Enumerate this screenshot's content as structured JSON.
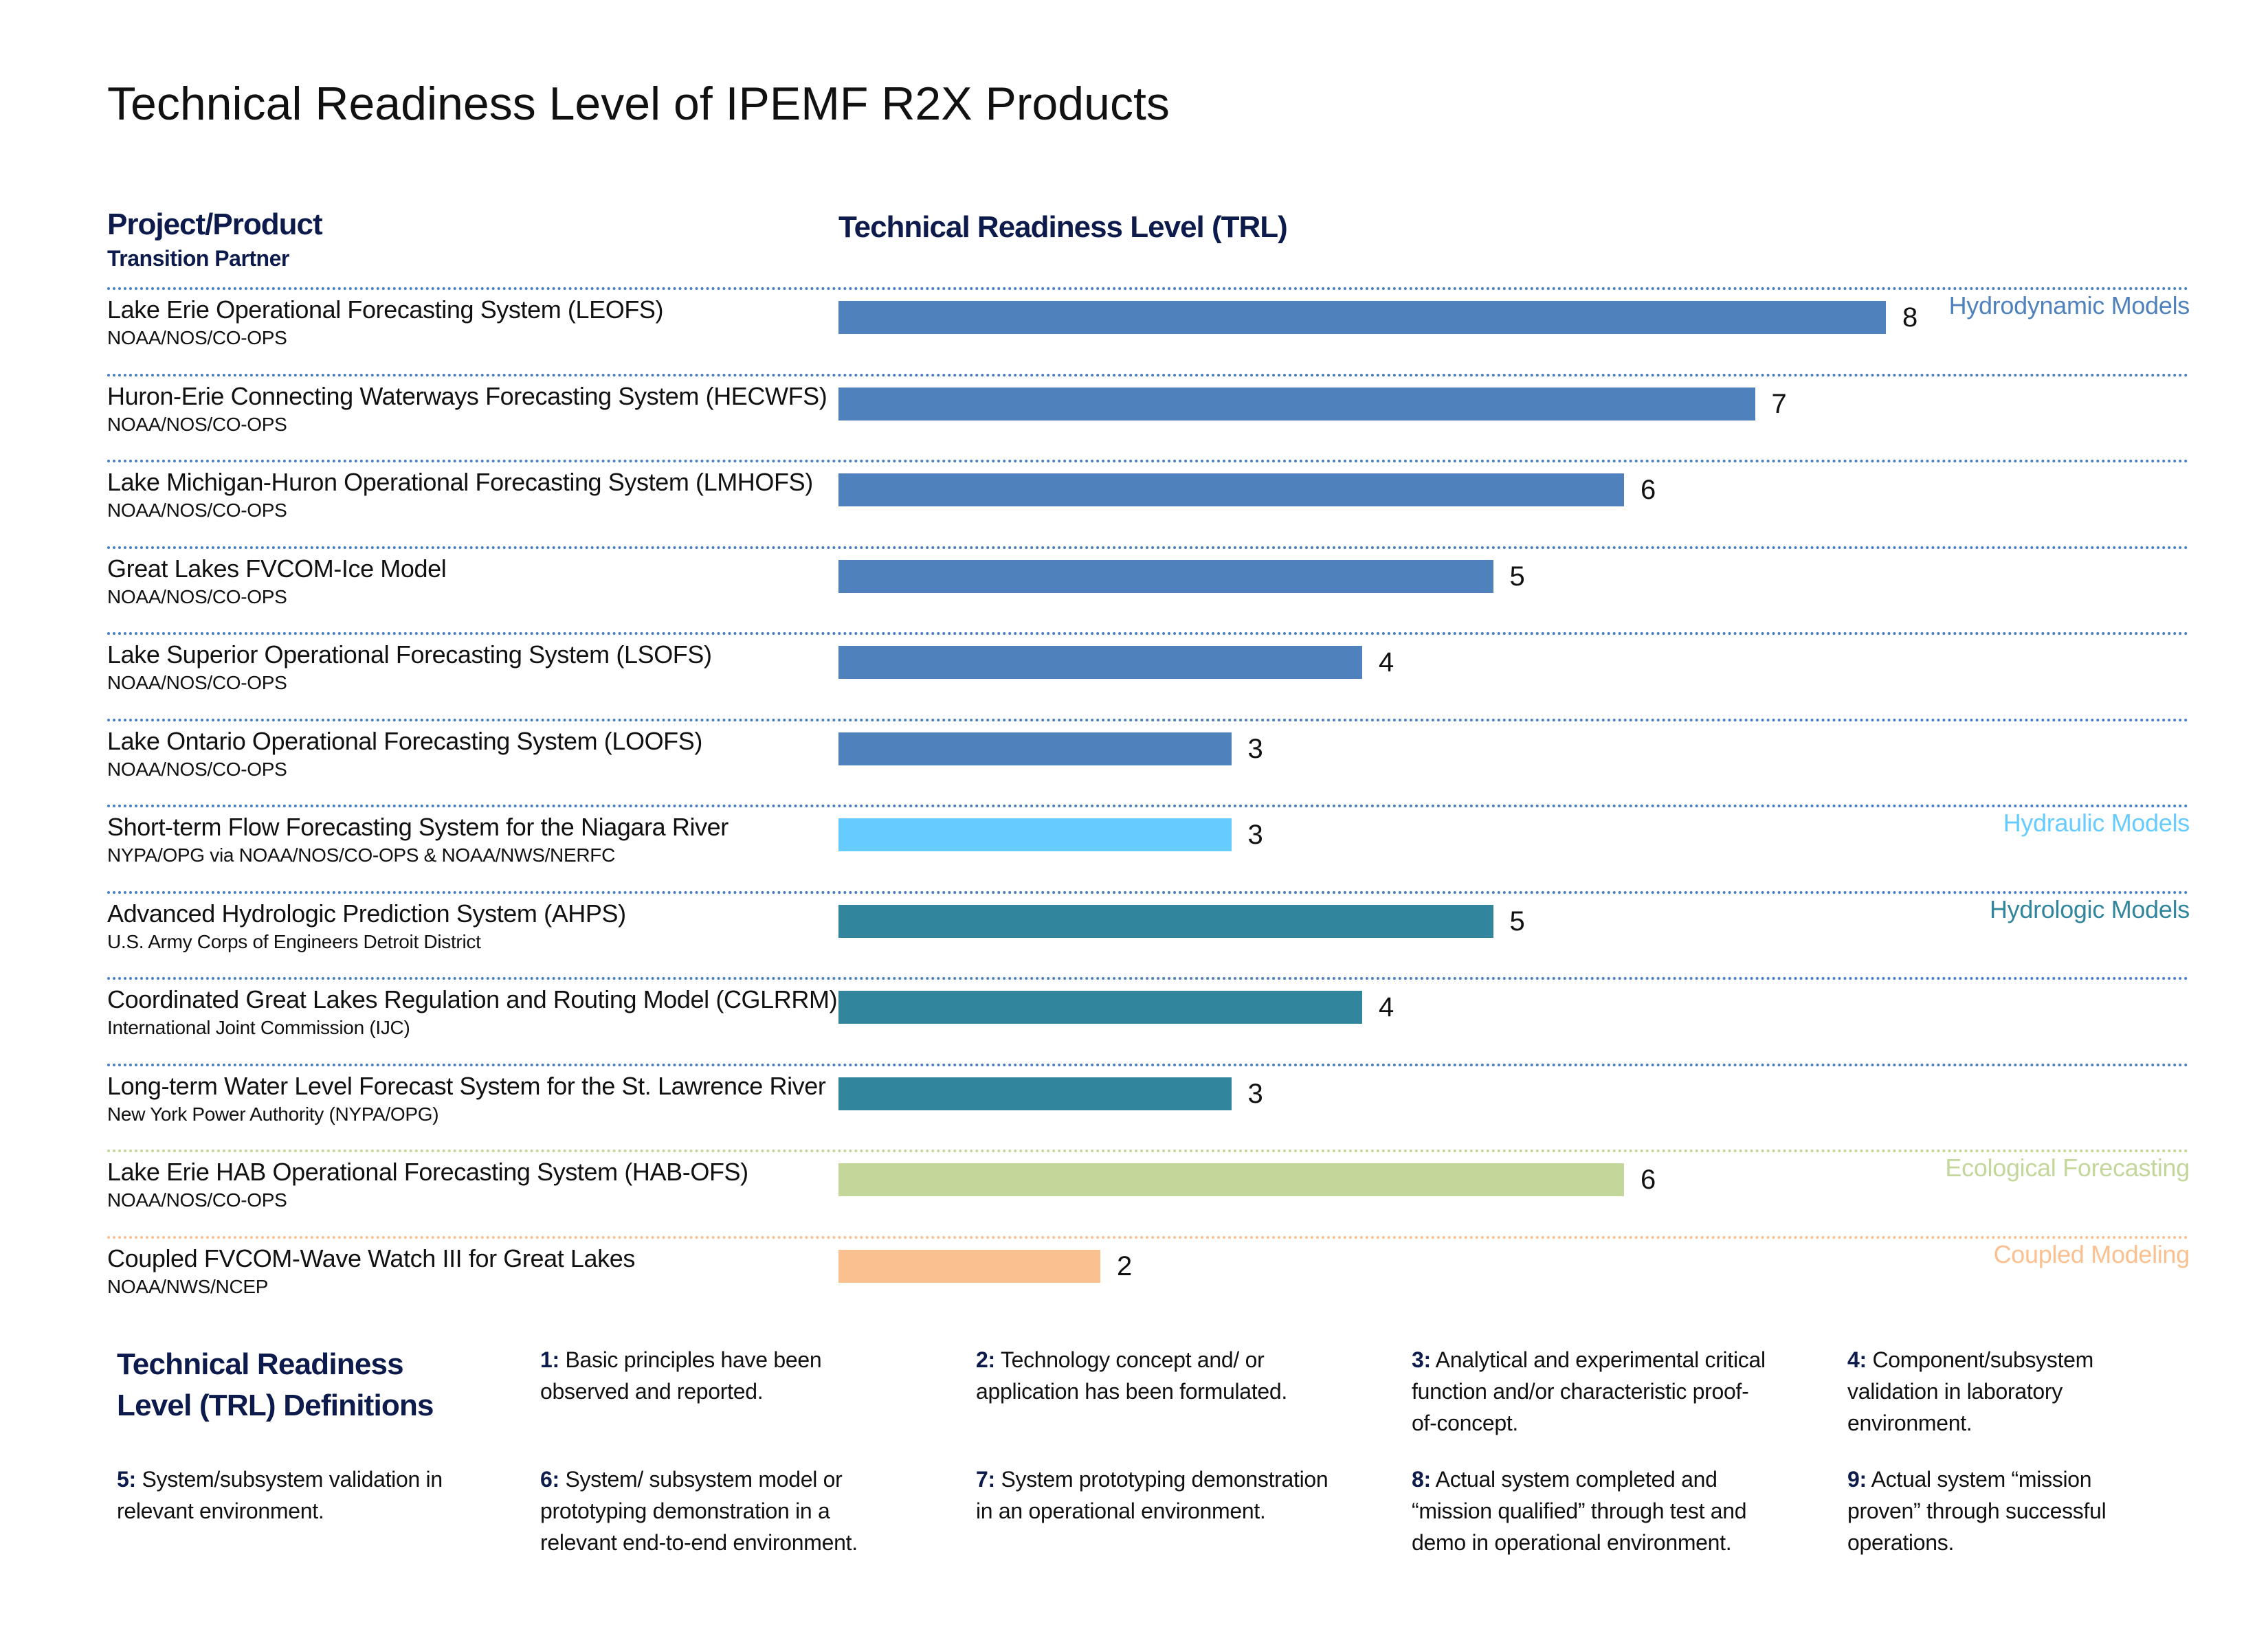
{
  "title": "Technical Readiness Level of IPEMF R2X Products",
  "header": {
    "project_label": "Project/Product",
    "partner_label": "Transition Partner",
    "trl_label": "Technical Readiness Level (TRL)"
  },
  "colors": {
    "hydrodynamic": "#4f81bd",
    "hydraulic": "#66ccff",
    "hydrologic": "#31859c",
    "ecological": "#c4d79b",
    "coupled": "#fac090",
    "separator_blue": "#4a7fc0",
    "separator_green": "#c4d79b",
    "separator_orange": "#fac090"
  },
  "chart_data": {
    "type": "bar",
    "orientation": "horizontal",
    "title": "Technical Readiness Level of IPEMF R2X Products",
    "xlabel": "Technical Readiness Level (TRL)",
    "xlim": [
      0,
      8
    ],
    "grid": false,
    "categories": [
      "Lake Erie Operational Forecasting System (LEOFS)",
      "Huron-Erie Connecting Waterways Forecasting System (HECWFS)",
      "Lake Michigan-Huron Operational Forecasting System (LMHOFS)",
      "Great Lakes FVCOM-Ice Model",
      "Lake Superior Operational Forecasting System (LSOFS)",
      "Lake Ontario Operational  Forecasting System (LOOFS)",
      "Short-term Flow Forecasting System for the Niagara River",
      "Advanced Hydrologic Prediction System (AHPS)",
      "Coordinated Great Lakes Regulation and Routing Model (CGLRRM)",
      "Long-term Water Level Forecast System for the St. Lawrence River",
      "Lake Erie HAB Operational Forecasting System (HAB-OFS)",
      "Coupled FVCOM-Wave Watch III for Great Lakes"
    ],
    "values": [
      8,
      7,
      6,
      5,
      4,
      3,
      3,
      5,
      4,
      3,
      6,
      2
    ],
    "rows": [
      {
        "name": "Lake Erie Operational Forecasting System (LEOFS)",
        "partner": "NOAA/NOS/CO-OPS",
        "trl": 8,
        "category": "Hydrodynamic Models",
        "group": "hydrodynamic"
      },
      {
        "name": "Huron-Erie Connecting Waterways Forecasting System (HECWFS)",
        "partner": "NOAA/NOS/CO-OPS",
        "trl": 7,
        "category": "",
        "group": "hydrodynamic"
      },
      {
        "name": "Lake Michigan-Huron Operational Forecasting System (LMHOFS)",
        "partner": "NOAA/NOS/CO-OPS",
        "trl": 6,
        "category": "",
        "group": "hydrodynamic"
      },
      {
        "name": "Great Lakes FVCOM-Ice Model",
        "partner": "NOAA/NOS/CO-OPS",
        "trl": 5,
        "category": "",
        "group": "hydrodynamic"
      },
      {
        "name": "Lake Superior Operational Forecasting System (LSOFS)",
        "partner": "NOAA/NOS/CO-OPS",
        "trl": 4,
        "category": "",
        "group": "hydrodynamic"
      },
      {
        "name": "Lake Ontario Operational  Forecasting System (LOOFS)",
        "partner": "NOAA/NOS/CO-OPS",
        "trl": 3,
        "category": "",
        "group": "hydrodynamic"
      },
      {
        "name": "Short-term Flow Forecasting System for the Niagara River",
        "partner": "NYPA/OPG via NOAA/NOS/CO-OPS & NOAA/NWS/NERFC",
        "trl": 3,
        "category": "Hydraulic Models",
        "group": "hydraulic"
      },
      {
        "name": "Advanced Hydrologic Prediction System (AHPS)",
        "partner": "U.S. Army Corps of Engineers Detroit District",
        "trl": 5,
        "category": "Hydrologic Models",
        "group": "hydrologic"
      },
      {
        "name": "Coordinated Great Lakes Regulation and Routing Model (CGLRRM)",
        "partner": "International Joint Commission (IJC)",
        "trl": 4,
        "category": "",
        "group": "hydrologic"
      },
      {
        "name": "Long-term Water Level Forecast System for the St. Lawrence River",
        "partner": "New York Power Authority (NYPA/OPG)",
        "trl": 3,
        "category": "",
        "group": "hydrologic"
      },
      {
        "name": "Lake Erie HAB Operational Forecasting System (HAB-OFS)",
        "partner": "NOAA/NOS/CO-OPS",
        "trl": 6,
        "category": "Ecological Forecasting",
        "group": "ecological"
      },
      {
        "name": "Coupled FVCOM-Wave Watch III for Great Lakes",
        "partner": "NOAA/NWS/NCEP",
        "trl": 2,
        "category": "Coupled Modeling",
        "group": "coupled"
      }
    ],
    "separator_groups": [
      "blue",
      "blue",
      "blue",
      "blue",
      "blue",
      "blue",
      "blue",
      "blue",
      "blue",
      "blue",
      "green",
      "orange"
    ]
  },
  "definitions": {
    "title_line1": "Technical Readiness",
    "title_line2": "Level (TRL) Definitions",
    "items": [
      {
        "num": "1:",
        "text": " Basic principles have been observed and reported."
      },
      {
        "num": "2:",
        "text": " Technology concept and/ or application has been formulated."
      },
      {
        "num": "3:",
        "text": " Analytical and experimental critical function and/or characteristic proof-of-concept."
      },
      {
        "num": "4:",
        "text": " Component/subsystem validation in laboratory environment."
      },
      {
        "num": "5:",
        "text": " System/subsystem validation in relevant environment."
      },
      {
        "num": "6:",
        "text": " System/ subsystem model or prototyping demonstration in a relevant end-to-end environment."
      },
      {
        "num": "7:",
        "text": " System prototyping demonstration in an operational environment."
      },
      {
        "num": "8:",
        "text": " Actual system completed and “mission qualified” through test and demo in operational environment."
      },
      {
        "num": "9:",
        "text": " Actual system “mission proven” through successful operations."
      }
    ]
  }
}
